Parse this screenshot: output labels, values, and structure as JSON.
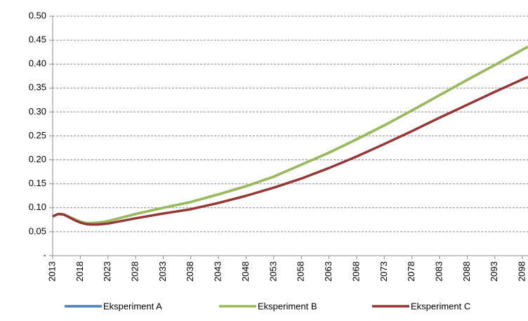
{
  "chart_data": {
    "type": "line",
    "x": [
      2013,
      2014,
      2015,
      2016,
      2017,
      2018,
      2019,
      2020,
      2021,
      2022,
      2023,
      2028,
      2033,
      2038,
      2043,
      2048,
      2053,
      2058,
      2063,
      2068,
      2073,
      2078,
      2083,
      2088,
      2093,
      2098,
      2099
    ],
    "series": [
      {
        "name": "Eksperiment A",
        "color": "#4f81bd",
        "values": [
          0.082,
          0.087,
          0.086,
          0.081,
          0.076,
          0.071,
          0.068,
          0.068,
          0.069,
          0.07,
          0.072,
          0.087,
          0.1,
          0.112,
          0.128,
          0.145,
          0.165,
          0.19,
          0.215,
          0.243,
          0.272,
          0.303,
          0.335,
          0.367,
          0.398,
          0.43,
          0.436
        ]
      },
      {
        "name": "Eksperiment B",
        "color": "#9bbb59",
        "values": [
          0.082,
          0.087,
          0.086,
          0.081,
          0.076,
          0.071,
          0.068,
          0.068,
          0.069,
          0.07,
          0.072,
          0.087,
          0.1,
          0.112,
          0.128,
          0.145,
          0.165,
          0.19,
          0.215,
          0.243,
          0.272,
          0.303,
          0.335,
          0.367,
          0.398,
          0.43,
          0.436
        ]
      },
      {
        "name": "Eksperiment C",
        "color": "#953735",
        "values": [
          0.082,
          0.087,
          0.086,
          0.08,
          0.074,
          0.069,
          0.066,
          0.065,
          0.065,
          0.066,
          0.067,
          0.078,
          0.088,
          0.097,
          0.11,
          0.125,
          0.142,
          0.161,
          0.183,
          0.207,
          0.233,
          0.26,
          0.288,
          0.315,
          0.342,
          0.368,
          0.373
        ]
      }
    ],
    "xlim": [
      2013,
      2099
    ],
    "xticks": [
      2013,
      2018,
      2023,
      2028,
      2033,
      2038,
      2043,
      2048,
      2053,
      2058,
      2063,
      2068,
      2073,
      2078,
      2083,
      2088,
      2093,
      2098
    ],
    "ylim": [
      0,
      0.5
    ],
    "yticks": [
      {
        "value": 0,
        "label": "-"
      },
      {
        "value": 0.05,
        "label": "0.05"
      },
      {
        "value": 0.1,
        "label": "0.10"
      },
      {
        "value": 0.15,
        "label": "0.15"
      },
      {
        "value": 0.2,
        "label": "0.20"
      },
      {
        "value": 0.25,
        "label": "0.25"
      },
      {
        "value": 0.3,
        "label": "0.30"
      },
      {
        "value": 0.35,
        "label": "0.35"
      },
      {
        "value": 0.4,
        "label": "0.40"
      },
      {
        "value": 0.45,
        "label": "0.45"
      },
      {
        "value": 0.5,
        "label": "0.50"
      }
    ],
    "grid": true,
    "legend": "bottom"
  }
}
